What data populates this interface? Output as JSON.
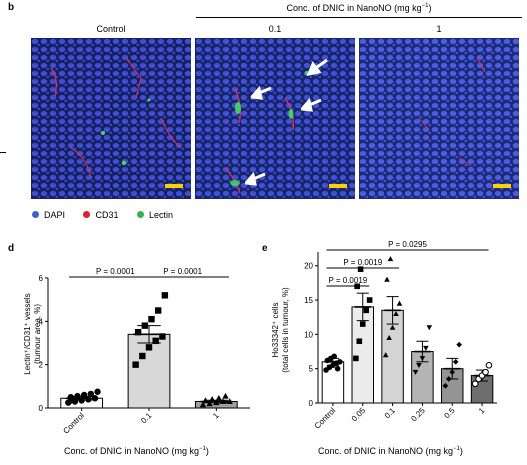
{
  "panel_b": {
    "letter": "b",
    "header": "Conc. of DNIC in NanoNO (mg kg",
    "header_sup": "−1",
    "header_close": ")",
    "panels": [
      {
        "label": "Control"
      },
      {
        "label": "0.1"
      },
      {
        "label": "1"
      }
    ],
    "legend": [
      {
        "label": "DAPI",
        "color": "#3a63c8"
      },
      {
        "label": "CD31",
        "color": "#e01e2e"
      },
      {
        "label": "Lectin",
        "color": "#2fb34a"
      }
    ],
    "image_colors": {
      "nuclei": "#3e4fd6",
      "background": "#182060",
      "cd31": "#e8304f",
      "lectin": "#42e052",
      "scalebar": "#f5d400",
      "arrow": "#ffffff"
    }
  },
  "panel_d": {
    "letter": "d",
    "ylabel_line1": "Lectin⁺/CD31⁺ vessels",
    "ylabel_line2": "(tumour area, %)",
    "xlabel": "Conc. of DNIC in NanoNO (mg kg",
    "xlabel_sup": "−1",
    "xlabel_close": ")",
    "stats": [
      {
        "text": "P = 0.0001"
      },
      {
        "text": "P = 0.0001"
      }
    ]
  },
  "panel_e": {
    "letter": "e",
    "ylabel_line1": "Ho33342⁺ cells",
    "ylabel_line2": "(total cells in tumour, %)",
    "xlabel": "Conc. of DNIC in NanoNO (mg kg",
    "xlabel_sup": "−1",
    "xlabel_close": ")",
    "stats": [
      {
        "text": "P = 0.0295"
      },
      {
        "text": "P = 0.0019"
      },
      {
        "text": "P = 0.0019"
      }
    ]
  },
  "chart_data": [
    {
      "type": "bar",
      "panel": "d",
      "categories": [
        "Control",
        "0.1",
        "1"
      ],
      "values": [
        0.45,
        3.4,
        0.3
      ],
      "errors": [
        0.08,
        0.4,
        0.06
      ],
      "bar_colors": [
        "#ffffff",
        "#d8d8d8",
        "#a0a0a0"
      ],
      "markers": [
        "circle",
        "square",
        "triangle"
      ],
      "points": [
        [
          0.25,
          0.3,
          0.35,
          0.4,
          0.45,
          0.5,
          0.55,
          0.6,
          0.65,
          0.75,
          0.35,
          0.5
        ],
        [
          2.0,
          2.4,
          2.8,
          3.1,
          3.3,
          3.5,
          3.8,
          4.1,
          4.5,
          5.2
        ],
        [
          0.15,
          0.2,
          0.25,
          0.3,
          0.3,
          0.35,
          0.4,
          0.45,
          0.55
        ]
      ],
      "xlabel": "Conc. of DNIC in NanoNO (mg kg−1)",
      "ylabel": "Lectin⁺/CD31⁺ vessels (tumour area, %)",
      "yticks": [
        0,
        2,
        4,
        6
      ],
      "ylim": [
        0,
        6
      ],
      "grid": false,
      "comparisons": [
        {
          "from": "Control",
          "to": "0.1",
          "p": "P = 0.0001"
        },
        {
          "from": "0.1",
          "to": "1",
          "p": "P = 0.0001"
        }
      ]
    },
    {
      "type": "bar",
      "panel": "e",
      "categories": [
        "Control",
        "0.05",
        "0.1",
        "0.25",
        "0.5",
        "1"
      ],
      "values": [
        6,
        14,
        13.5,
        7.5,
        5,
        4
      ],
      "errors": [
        0.5,
        2,
        2,
        1.5,
        1.5,
        0.8
      ],
      "bar_colors": [
        "#ffffff",
        "#ececec",
        "#d4d4d4",
        "#b4b4b4",
        "#949494",
        "#6e6e6e"
      ],
      "markers": [
        "circle",
        "square",
        "triangle",
        "triangle-down",
        "diamond",
        "open-circle"
      ],
      "points": [
        [
          4.8,
          5.2,
          5.5,
          5.8,
          6.0,
          6.2,
          6.5,
          6.8,
          5.0
        ],
        [
          6.5,
          9,
          11.5,
          13.5,
          15,
          17,
          19.5
        ],
        [
          7,
          9.5,
          11,
          13,
          14.5,
          18,
          21
        ],
        [
          4.5,
          5.5,
          6.5,
          8,
          11
        ],
        [
          2.5,
          3.5,
          4.5,
          6,
          8.5
        ],
        [
          2.8,
          3.5,
          4,
          4.5,
          5.5
        ]
      ],
      "xlabel": "Conc. of DNIC in NanoNO (mg kg−1)",
      "ylabel": "Ho33342⁺ cells (total cells in tumour, %)",
      "yticks": [
        0,
        5,
        10,
        15,
        20
      ],
      "ylim": [
        0,
        22
      ],
      "grid": false,
      "comparisons": [
        {
          "from": "Control",
          "to": "1",
          "p": "P = 0.0295"
        },
        {
          "from": "Control",
          "to": "0.1",
          "p": "P = 0.0019"
        },
        {
          "from": "Control",
          "to": "0.05",
          "p": "P = 0.0019"
        }
      ]
    }
  ]
}
